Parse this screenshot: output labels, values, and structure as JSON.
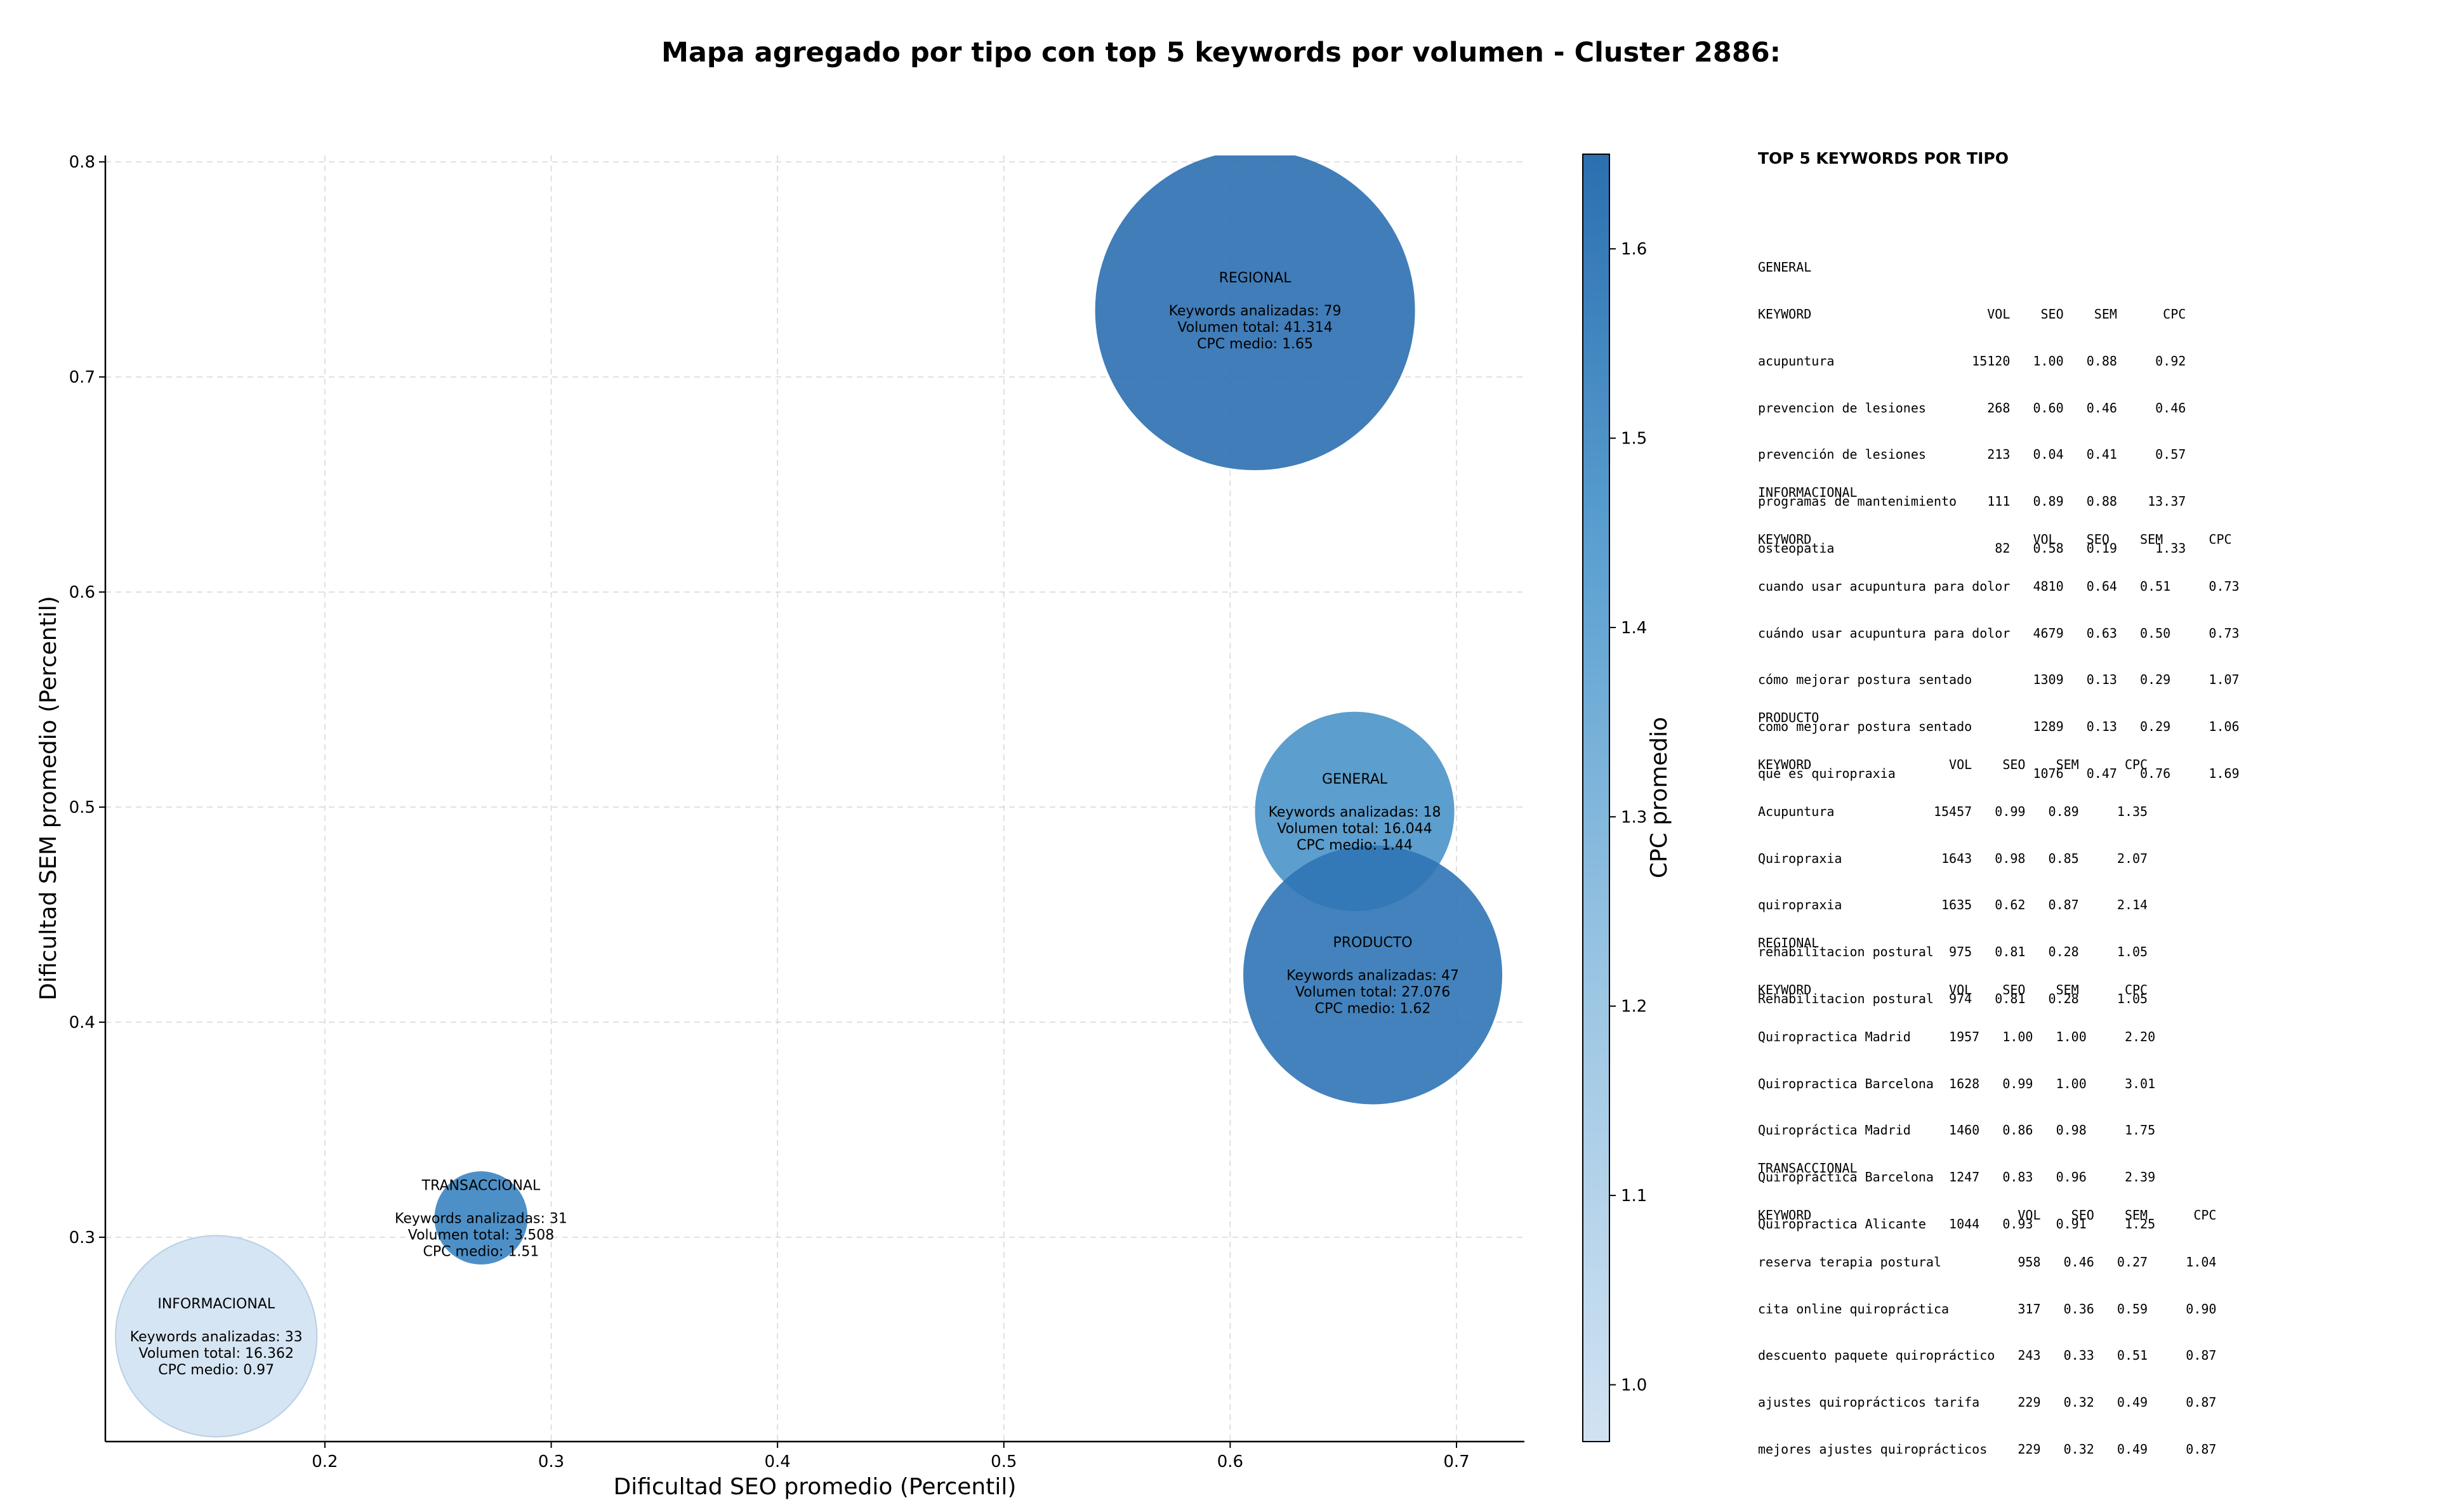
{
  "chart_data": {
    "type": "scatter",
    "variant": "bubble",
    "title": "Mapa agregado por tipo con top 5 keywords por volumen - Cluster 2886:",
    "xlabel": "Dificultad SEO promedio (Percentil)",
    "ylabel": "Dificultad SEM promedio (Percentil)",
    "xlim": [
      0.103,
      0.73
    ],
    "ylim": [
      0.205,
      0.803
    ],
    "xticks": [
      0.2,
      0.3,
      0.4,
      0.5,
      0.6,
      0.7
    ],
    "yticks": [
      0.3,
      0.4,
      0.5,
      0.6,
      0.7,
      0.8
    ],
    "xtick_labels": [
      "0.2",
      "0.3",
      "0.4",
      "0.5",
      "0.6",
      "0.7"
    ],
    "ytick_labels": [
      "0.3",
      "0.4",
      "0.5",
      "0.6",
      "0.7",
      "0.8"
    ],
    "grid": true,
    "colorbar": {
      "label": "CPC promedio",
      "range": [
        0.97,
        1.65
      ],
      "ticks": [
        1.0,
        1.1,
        1.2,
        1.3,
        1.4,
        1.5,
        1.6
      ],
      "tick_labels": [
        "1.0",
        "1.1",
        "1.2",
        "1.3",
        "1.4",
        "1.5",
        "1.6"
      ],
      "colormap": "Blues",
      "color_low": "#d1e2f2",
      "color_high": "#2c6fb0"
    },
    "series": [
      {
        "name": "REGIONAL",
        "x": 0.611,
        "y": 0.731,
        "volume": 41314,
        "color": "#2c6fb0",
        "lines": [
          "Keywords analizadas: 79",
          "Volumen total: 41.314",
          "CPC medio: 1.65"
        ]
      },
      {
        "name": "GENERAL",
        "x": 0.655,
        "y": 0.498,
        "volume": 16044,
        "color": "#4a93c8",
        "lines": [
          "Keywords analizadas: 18",
          "Volumen total: 16.044",
          "CPC medio: 1.44"
        ]
      },
      {
        "name": "PRODUCTO",
        "x": 0.663,
        "y": 0.422,
        "volume": 27076,
        "color": "#2f74b5",
        "lines": [
          "Keywords analizadas: 47",
          "Volumen total: 27.076",
          "CPC medio: 1.62"
        ]
      },
      {
        "name": "TRANSACCIONAL",
        "x": 0.269,
        "y": 0.309,
        "volume": 3508,
        "color": "#3a84c1",
        "lines": [
          "Keywords analizadas: 31",
          "Volumen total: 3.508",
          "CPC medio: 1.51"
        ]
      },
      {
        "name": "INFORMACIONAL",
        "x": 0.152,
        "y": 0.254,
        "volume": 16362,
        "color": "#d1e2f2",
        "lines": [
          "Keywords analizadas: 33",
          "Volumen total: 16.362",
          "CPC medio: 0.97"
        ]
      }
    ]
  },
  "panel": {
    "title": "TOP 5 KEYWORDS POR TIPO",
    "groups": [
      {
        "name": "GENERAL",
        "header": "KEYWORD                       VOL    SEO    SEM      CPC",
        "rows": [
          "acupuntura                  15120   1.00   0.88     0.92",
          "prevencion de lesiones        268   0.60   0.46     0.46",
          "prevención de lesiones        213   0.04   0.41     0.57",
          "programas de mantenimiento    111   0.89   0.88    13.37",
          "osteopatia                     82   0.58   0.19     1.33"
        ]
      },
      {
        "name": "INFORMACIONAL",
        "header": "KEYWORD                             VOL    SEO    SEM      CPC",
        "rows": [
          "cuando usar acupuntura para dolor   4810   0.64   0.51     0.73",
          "cuándo usar acupuntura para dolor   4679   0.63   0.50     0.73",
          "cómo mejorar postura sentado        1309   0.13   0.29     1.07",
          "como mejorar postura sentado        1289   0.13   0.29     1.06",
          "qué es quiropraxia                  1076   0.47   0.76     1.69"
        ]
      },
      {
        "name": "PRODUCTO",
        "header": "KEYWORD                  VOL    SEO    SEM      CPC",
        "rows": [
          "Acupuntura             15457   0.99   0.89     1.35",
          "Quiropraxia             1643   0.98   0.85     2.07",
          "quiropraxia             1635   0.62   0.87     2.14",
          "rehabilitacion postural  975   0.81   0.28     1.05",
          "Rehabilitacion postural  974   0.81   0.28     1.05"
        ]
      },
      {
        "name": "REGIONAL",
        "header": "KEYWORD                  VOL    SEO    SEM      CPC",
        "rows": [
          "Quiropractica Madrid     1957   1.00   1.00     2.20",
          "Quiropractica Barcelona  1628   0.99   1.00     3.01",
          "Quiropráctica Madrid     1460   0.86   0.98     1.75",
          "Quiropráctica Barcelona  1247   0.83   0.96     2.39",
          "Quiropractica Alicante   1044   0.93   0.91     1.25"
        ]
      },
      {
        "name": "TRANSACCIONAL",
        "header": "KEYWORD                           VOL    SEO    SEM      CPC",
        "rows": [
          "reserva terapia postural          958   0.46   0.27     1.04",
          "cita online quiropráctica         317   0.36   0.59     0.90",
          "descuento paquete quiropráctico   243   0.33   0.51     0.87",
          "ajustes quiroprácticos tarifa     229   0.32   0.49     0.87",
          "mejores ajustes quiroprácticos    229   0.32   0.49     0.87"
        ]
      }
    ]
  }
}
